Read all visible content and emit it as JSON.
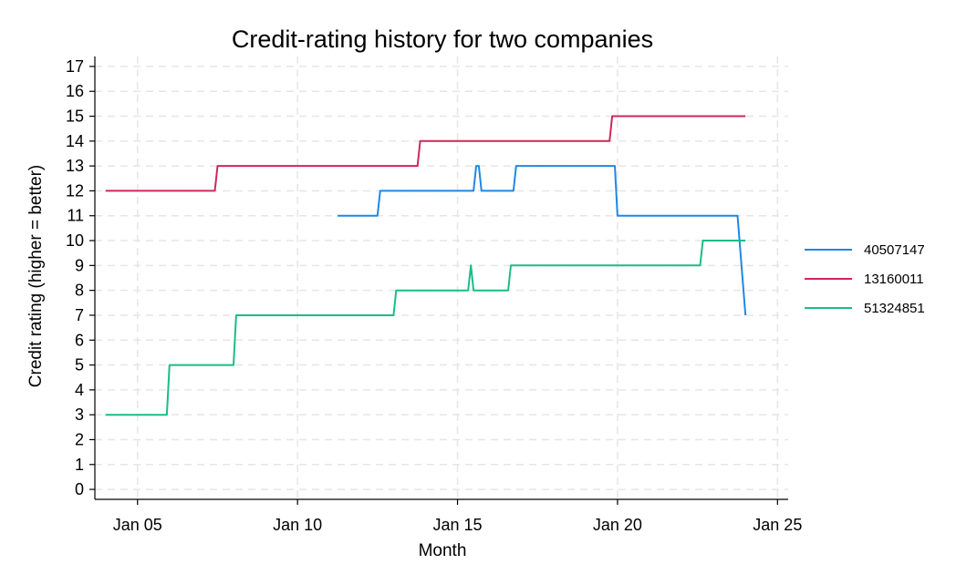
{
  "chart_data": {
    "type": "line",
    "title": "Credit-rating history for two companies",
    "xlabel": "Month",
    "ylabel": "Credit rating (higher = better)",
    "x_ticks": [
      "Jan 05",
      "Jan 10",
      "Jan 15",
      "Jan 20",
      "Jan 25"
    ],
    "x_tick_values": [
      "2005-01",
      "2010-01",
      "2015-01",
      "2020-01",
      "2025-01"
    ],
    "xlim": [
      "2003-09",
      "2025-05"
    ],
    "y_ticks": [
      0,
      1,
      2,
      3,
      4,
      5,
      6,
      7,
      8,
      9,
      10,
      11,
      12,
      13,
      14,
      15,
      16,
      17
    ],
    "ylim": [
      -0.4,
      17.4
    ],
    "grid": true,
    "legend_position": "right",
    "series": [
      {
        "name": "40507147",
        "color": "#1e88e5",
        "points": [
          [
            "2011-04",
            11
          ],
          [
            "2012-07",
            11
          ],
          [
            "2012-08",
            12
          ],
          [
            "2015-07",
            12
          ],
          [
            "2015-08",
            13
          ],
          [
            "2015-09",
            13
          ],
          [
            "2015-10",
            12
          ],
          [
            "2016-10",
            12
          ],
          [
            "2016-11",
            13
          ],
          [
            "2019-12",
            13
          ],
          [
            "2020-01",
            11
          ],
          [
            "2023-10",
            11
          ],
          [
            "2024-01",
            7
          ]
        ]
      },
      {
        "name": "13160011",
        "color": "#d1265a",
        "points": [
          [
            "2004-01",
            12
          ],
          [
            "2007-06",
            12
          ],
          [
            "2007-07",
            13
          ],
          [
            "2013-10",
            13
          ],
          [
            "2013-11",
            14
          ],
          [
            "2019-10",
            14
          ],
          [
            "2019-11",
            15
          ],
          [
            "2024-01",
            15
          ]
        ]
      },
      {
        "name": "51324851",
        "color": "#1abc87",
        "points": [
          [
            "2004-01",
            3
          ],
          [
            "2005-12",
            3
          ],
          [
            "2006-01",
            5
          ],
          [
            "2008-01",
            5
          ],
          [
            "2008-02",
            7
          ],
          [
            "2013-01",
            7
          ],
          [
            "2013-02",
            8
          ],
          [
            "2015-05",
            8
          ],
          [
            "2015-06",
            9
          ],
          [
            "2015-07",
            8
          ],
          [
            "2016-08",
            8
          ],
          [
            "2016-09",
            9
          ],
          [
            "2022-08",
            9
          ],
          [
            "2022-09",
            10
          ],
          [
            "2024-01",
            10
          ]
        ]
      }
    ]
  }
}
